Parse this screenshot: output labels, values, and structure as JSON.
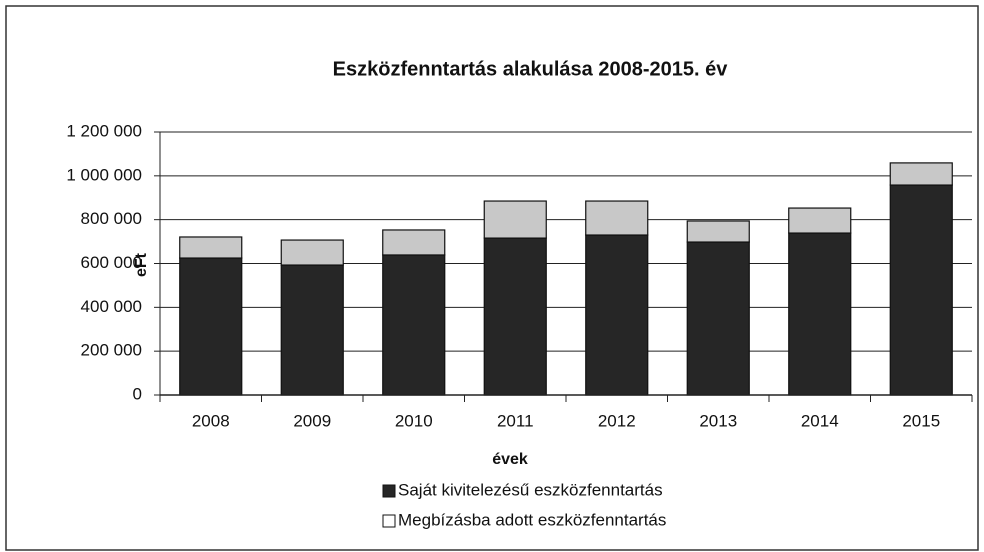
{
  "chart_data": {
    "type": "stacked_bar",
    "title": "Eszközfenntartás alakulása 2008-2015. év",
    "xlabel": "évek",
    "ylabel": "eFt",
    "categories": [
      "2008",
      "2009",
      "2010",
      "2011",
      "2012",
      "2013",
      "2014",
      "2015"
    ],
    "series": [
      {
        "name": "Saját kivitelezésű eszközfenntartás",
        "color": "#262626",
        "values": [
          625000,
          593000,
          639000,
          716000,
          730000,
          698000,
          739000,
          958000
        ]
      },
      {
        "name": "Megbízásba adott eszközfenntartás",
        "color": "#c8c8c8",
        "values": [
          96000,
          114000,
          114000,
          169000,
          155000,
          96000,
          114000,
          101000
        ]
      }
    ],
    "ylim": [
      0,
      1200000
    ],
    "yticks": [
      0,
      {
        "value": 200000,
        "label": "200 000"
      },
      {
        "value": 400000,
        "label": "400 000"
      },
      {
        "value": 600000,
        "label": "600 000"
      },
      {
        "value": 800000,
        "label": "800 000"
      },
      {
        "value": 1000000,
        "label": "1 000 000"
      },
      {
        "value": 1200000,
        "label": "1 200 000"
      }
    ],
    "grid": true
  }
}
